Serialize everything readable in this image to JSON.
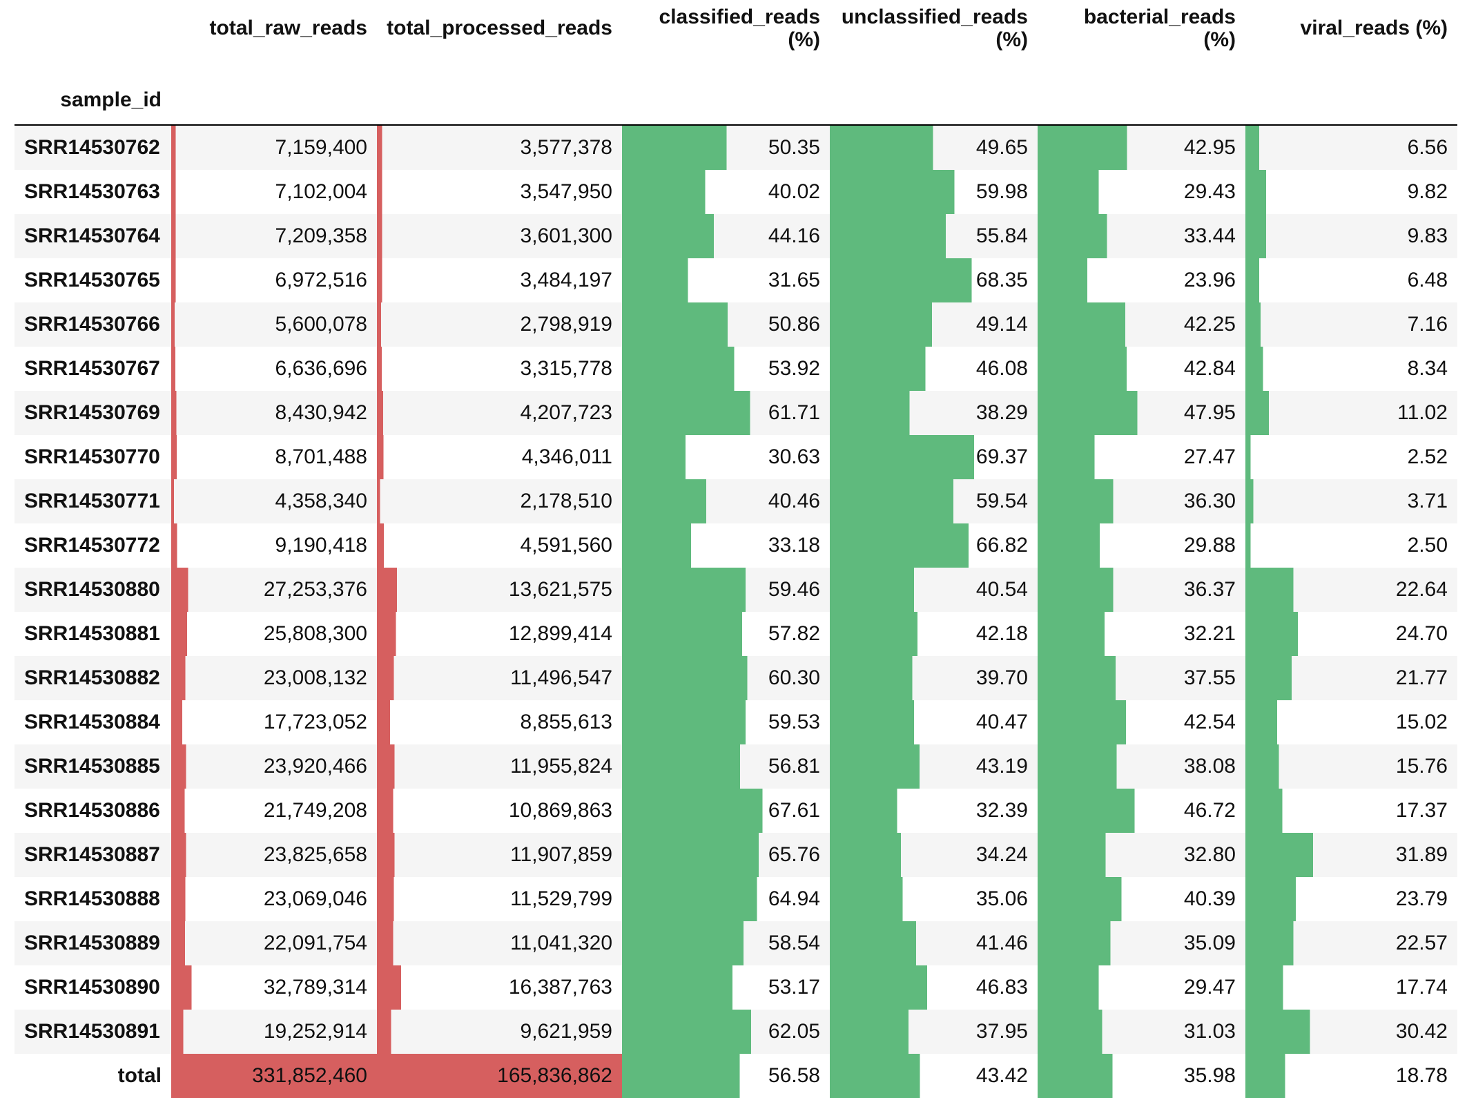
{
  "table": {
    "index_name": "sample_id",
    "columns": [
      {
        "key": "total_raw_reads",
        "label": [
          "total_raw_reads"
        ],
        "bar_color": "#d65f5f",
        "bar_max": 331852460,
        "decimals": 0
      },
      {
        "key": "total_processed_reads",
        "label": [
          "total_processed_reads"
        ],
        "bar_color": "#d65f5f",
        "bar_max": 165836862,
        "decimals": 0
      },
      {
        "key": "classified_reads_pct",
        "label": [
          "classified_reads",
          "(%)"
        ],
        "bar_color": "#5fba7d",
        "bar_max": 100,
        "decimals": 2
      },
      {
        "key": "unclassified_reads_pct",
        "label": [
          "unclassified_reads",
          "(%)"
        ],
        "bar_color": "#5fba7d",
        "bar_max": 100,
        "decimals": 2
      },
      {
        "key": "bacterial_reads_pct",
        "label": [
          "bacterial_reads",
          "(%)"
        ],
        "bar_color": "#5fba7d",
        "bar_max": 100,
        "decimals": 2
      },
      {
        "key": "viral_reads_pct",
        "label": [
          "viral_reads (%)"
        ],
        "bar_color": "#5fba7d",
        "bar_max": 100,
        "decimals": 2
      }
    ],
    "rows": [
      {
        "sample_id": "SRR14530762",
        "values": [
          7159400,
          3577378,
          50.35,
          49.65,
          42.95,
          6.56
        ]
      },
      {
        "sample_id": "SRR14530763",
        "values": [
          7102004,
          3547950,
          40.02,
          59.98,
          29.43,
          9.82
        ]
      },
      {
        "sample_id": "SRR14530764",
        "values": [
          7209358,
          3601300,
          44.16,
          55.84,
          33.44,
          9.83
        ]
      },
      {
        "sample_id": "SRR14530765",
        "values": [
          6972516,
          3484197,
          31.65,
          68.35,
          23.96,
          6.48
        ]
      },
      {
        "sample_id": "SRR14530766",
        "values": [
          5600078,
          2798919,
          50.86,
          49.14,
          42.25,
          7.16
        ]
      },
      {
        "sample_id": "SRR14530767",
        "values": [
          6636696,
          3315778,
          53.92,
          46.08,
          42.84,
          8.34
        ]
      },
      {
        "sample_id": "SRR14530769",
        "values": [
          8430942,
          4207723,
          61.71,
          38.29,
          47.95,
          11.02
        ]
      },
      {
        "sample_id": "SRR14530770",
        "values": [
          8701488,
          4346011,
          30.63,
          69.37,
          27.47,
          2.52
        ]
      },
      {
        "sample_id": "SRR14530771",
        "values": [
          4358340,
          2178510,
          40.46,
          59.54,
          36.3,
          3.71
        ]
      },
      {
        "sample_id": "SRR14530772",
        "values": [
          9190418,
          4591560,
          33.18,
          66.82,
          29.88,
          2.5
        ]
      },
      {
        "sample_id": "SRR14530880",
        "values": [
          27253376,
          13621575,
          59.46,
          40.54,
          36.37,
          22.64
        ]
      },
      {
        "sample_id": "SRR14530881",
        "values": [
          25808300,
          12899414,
          57.82,
          42.18,
          32.21,
          24.7
        ]
      },
      {
        "sample_id": "SRR14530882",
        "values": [
          23008132,
          11496547,
          60.3,
          39.7,
          37.55,
          21.77
        ]
      },
      {
        "sample_id": "SRR14530884",
        "values": [
          17723052,
          8855613,
          59.53,
          40.47,
          42.54,
          15.02
        ]
      },
      {
        "sample_id": "SRR14530885",
        "values": [
          23920466,
          11955824,
          56.81,
          43.19,
          38.08,
          15.76
        ]
      },
      {
        "sample_id": "SRR14530886",
        "values": [
          21749208,
          10869863,
          67.61,
          32.39,
          46.72,
          17.37
        ]
      },
      {
        "sample_id": "SRR14530887",
        "values": [
          23825658,
          11907859,
          65.76,
          34.24,
          32.8,
          31.89
        ]
      },
      {
        "sample_id": "SRR14530888",
        "values": [
          23069046,
          11529799,
          64.94,
          35.06,
          40.39,
          23.79
        ]
      },
      {
        "sample_id": "SRR14530889",
        "values": [
          22091754,
          11041320,
          58.54,
          41.46,
          35.09,
          22.57
        ]
      },
      {
        "sample_id": "SRR14530890",
        "values": [
          32789314,
          16387763,
          53.17,
          46.83,
          29.47,
          17.74
        ]
      },
      {
        "sample_id": "SRR14530891",
        "values": [
          19252914,
          9621959,
          62.05,
          37.95,
          31.03,
          30.42
        ]
      },
      {
        "sample_id": "total",
        "values": [
          331852460,
          165836862,
          56.58,
          43.42,
          35.98,
          18.78
        ]
      }
    ]
  }
}
